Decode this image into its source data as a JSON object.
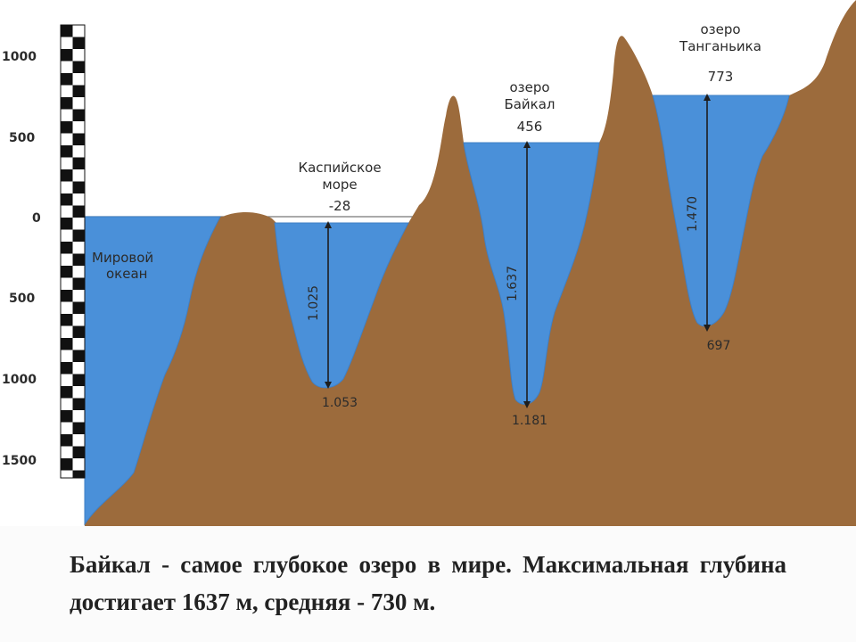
{
  "ruler": {
    "labels": [
      "1000",
      "500",
      "0",
      "500",
      "1000",
      "1500"
    ]
  },
  "ocean": {
    "name_line1": "Мировой",
    "name_line2": "океан"
  },
  "caspian": {
    "name_line1": "Каспийское",
    "name_line2": "море",
    "surface": "-28",
    "depth": "1.025",
    "bottom": "1.053"
  },
  "baikal": {
    "name_line1": "озеро",
    "name_line2": "Байкал",
    "surface": "456",
    "depth": "1.637",
    "bottom": "1.181"
  },
  "tanganyika": {
    "name_line1": "озеро",
    "name_line2": "Танганьика",
    "surface": "773",
    "depth": "1.470",
    "bottom": "697"
  },
  "caption": "Байкал - самое глубокое озеро в мире. Максимальная глубина достигает 1637 м, средняя - 730 м.",
  "colors": {
    "land": "#9c6b3c",
    "water": "#4a90d9",
    "water_edge": "#3f7fc5",
    "caption_bg": "#fbfbfb"
  }
}
